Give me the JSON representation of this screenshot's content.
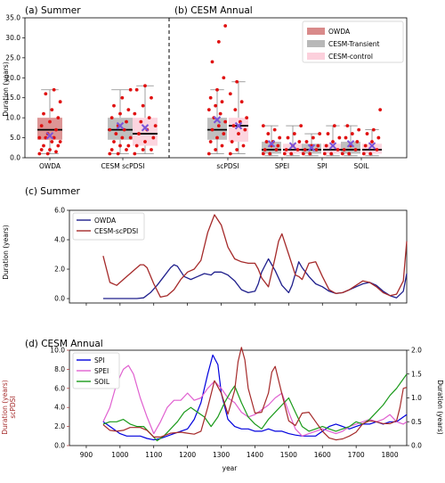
{
  "chart_data": [
    {
      "panel": "(a) Summer",
      "type": "box",
      "title": "(a) Summer",
      "ylabel": "Duration (years)",
      "ylim": [
        0,
        35
      ],
      "yticks": [
        "0.0",
        "5.0",
        "10.0",
        "15.0",
        "20.0",
        "25.0",
        "30.0",
        "35.0"
      ],
      "categories": [
        "OWDA",
        "CESM scPDSI"
      ],
      "boxes": [
        {
          "cat": "OWDA",
          "series": "OWDA",
          "q1": 4.5,
          "median": 7,
          "q3": 10,
          "whislo": 1,
          "whishi": 17,
          "mean": 5.5,
          "points": [
            1,
            1,
            1.5,
            2,
            2,
            3,
            3,
            4,
            4,
            5,
            5,
            5,
            6,
            7,
            8,
            9,
            10,
            11,
            12,
            14,
            16,
            17
          ]
        },
        {
          "cat": "CESM scPDSI",
          "series": "CESM-Transient",
          "q1": 4.5,
          "median": 7,
          "q3": 10,
          "whislo": 1,
          "whishi": 17,
          "mean": 8,
          "points": [
            1,
            1,
            2,
            2,
            3,
            3,
            4,
            5,
            5,
            6,
            7,
            7,
            8,
            9,
            10,
            11,
            12,
            13,
            15,
            17
          ]
        },
        {
          "cat": "CESM scPDSI",
          "series": "CESM-control",
          "q1": 3,
          "median": 6,
          "q3": 10,
          "whislo": 1,
          "whishi": 18,
          "mean": 7.5,
          "points": [
            1,
            2,
            2,
            3,
            4,
            5,
            6,
            7,
            8,
            9,
            10,
            11,
            13,
            15,
            17,
            18
          ]
        }
      ]
    },
    {
      "panel": "(b) CESM Annual",
      "type": "box",
      "title": "(b) CESM Annual",
      "categories": [
        "scPDSI",
        "SPEI",
        "SPI",
        "SOIL"
      ],
      "legend": [
        "OWDA",
        "CESM-Transient",
        "CESM-control"
      ],
      "legend_position": "top-right",
      "boxes": [
        {
          "cat": "scPDSI",
          "series": "CESM-Transient",
          "q1": 4.5,
          "median": 7,
          "q3": 10,
          "whislo": 1,
          "whishi": 17,
          "mean": 9.5,
          "points": [
            1,
            2,
            3,
            4,
            5,
            6,
            7,
            8,
            9,
            10,
            11,
            12,
            13,
            14,
            15,
            17,
            20,
            24,
            29,
            33
          ]
        },
        {
          "cat": "scPDSI",
          "series": "CESM-control",
          "q1": 4,
          "median": 8,
          "q3": 10,
          "whislo": 1,
          "whishi": 19,
          "mean": 8,
          "points": [
            1,
            2,
            3,
            4,
            6,
            7,
            8,
            9,
            10,
            12,
            14,
            16,
            19
          ]
        },
        {
          "cat": "SPEI",
          "series": "CESM-Transient",
          "q1": 1,
          "median": 2,
          "q3": 4,
          "whislo": 0.5,
          "whishi": 8,
          "mean": 3.5,
          "points": [
            1,
            1,
            2,
            2,
            3,
            3,
            4,
            4,
            5,
            6,
            7,
            8
          ]
        },
        {
          "cat": "SPEI",
          "series": "CESM-control",
          "q1": 1,
          "median": 2,
          "q3": 3.5,
          "whislo": 0.5,
          "whishi": 8,
          "mean": 3,
          "points": [
            1,
            1,
            2,
            2,
            3,
            4,
            5,
            6,
            8
          ]
        },
        {
          "cat": "SPI",
          "series": "CESM-Transient",
          "q1": 1,
          "median": 2,
          "q3": 3.5,
          "whislo": 0.5,
          "whishi": 6,
          "mean": 2.5,
          "points": [
            1,
            1,
            2,
            2,
            3,
            3,
            4,
            5,
            6
          ]
        },
        {
          "cat": "SPI",
          "series": "CESM-control",
          "q1": 1,
          "median": 2,
          "q3": 3.5,
          "whislo": 0.5,
          "whishi": 8,
          "mean": 3,
          "points": [
            1,
            1,
            2,
            3,
            4,
            5,
            6,
            8
          ]
        },
        {
          "cat": "SOIL",
          "series": "CESM-Transient",
          "q1": 1,
          "median": 2,
          "q3": 4,
          "whislo": 0.5,
          "whishi": 8,
          "mean": 3.5,
          "points": [
            1,
            1,
            2,
            2,
            3,
            4,
            5,
            6,
            7,
            8
          ]
        },
        {
          "cat": "SOIL",
          "series": "CESM-control",
          "q1": 1,
          "median": 2,
          "q3": 3.5,
          "whislo": 0.5,
          "whishi": 7,
          "mean": 3,
          "points": [
            1,
            1,
            2,
            3,
            4,
            5,
            6,
            7,
            12
          ]
        }
      ]
    },
    {
      "panel": "(c) Summer",
      "type": "line",
      "title": "(c) Summer",
      "ylabel": "Duration (years)",
      "xlim": [
        850,
        1850
      ],
      "ylim": [
        -0.3,
        6
      ],
      "yticks": [
        "0.0",
        "2.0",
        "4.0",
        "6.0"
      ],
      "legend_position": "top-left",
      "series": [
        {
          "name": "OWDA",
          "color": "#1f1f8c",
          "x": [
            950,
            1000,
            1050,
            1070,
            1090,
            1110,
            1130,
            1150,
            1160,
            1170,
            1190,
            1210,
            1230,
            1250,
            1270,
            1280,
            1300,
            1320,
            1340,
            1360,
            1380,
            1400,
            1410,
            1420,
            1440,
            1460,
            1480,
            1500,
            1510,
            1520,
            1530,
            1540,
            1560,
            1580,
            1600,
            1620,
            1640,
            1660,
            1680,
            1700,
            1720,
            1740,
            1760,
            1780,
            1800,
            1820,
            1840,
            1850
          ],
          "y": [
            0,
            0,
            0,
            0.05,
            0.4,
            0.9,
            1.5,
            2.1,
            2.3,
            2.2,
            1.5,
            1.3,
            1.5,
            1.7,
            1.6,
            1.8,
            1.8,
            1.6,
            1.2,
            0.6,
            0.4,
            0.5,
            1.0,
            1.8,
            2.7,
            1.9,
            0.9,
            0.4,
            0.9,
            1.7,
            2.5,
            2.1,
            1.5,
            1.0,
            0.8,
            0.5,
            0.35,
            0.4,
            0.6,
            0.8,
            1.0,
            1.1,
            0.9,
            0.5,
            0.2,
            0.05,
            0.5,
            1.7
          ]
        },
        {
          "name": "CESM-scPDSI",
          "color": "#a52a2a",
          "x": [
            950,
            970,
            990,
            1010,
            1030,
            1050,
            1060,
            1070,
            1080,
            1100,
            1120,
            1140,
            1160,
            1180,
            1200,
            1220,
            1240,
            1260,
            1280,
            1300,
            1320,
            1340,
            1360,
            1380,
            1400,
            1410,
            1420,
            1440,
            1460,
            1470,
            1480,
            1500,
            1520,
            1530,
            1540,
            1560,
            1580,
            1600,
            1620,
            1640,
            1660,
            1680,
            1700,
            1720,
            1740,
            1760,
            1780,
            1800,
            1820,
            1840,
            1850
          ],
          "y": [
            2.9,
            1.1,
            0.9,
            1.3,
            1.7,
            2.1,
            2.3,
            2.3,
            2.1,
            1.0,
            0.1,
            0.2,
            0.6,
            1.3,
            1.8,
            2.0,
            2.6,
            4.5,
            5.7,
            5.0,
            3.5,
            2.7,
            2.5,
            2.4,
            2.4,
            2.0,
            1.4,
            0.8,
            2.8,
            3.9,
            4.4,
            3.0,
            1.6,
            1.5,
            1.3,
            2.4,
            2.5,
            1.5,
            0.6,
            0.35,
            0.4,
            0.6,
            0.9,
            1.2,
            1.1,
            0.8,
            0.4,
            0.2,
            0.3,
            1.2,
            3.9
          ]
        }
      ]
    },
    {
      "panel": "(d) CESM Annual",
      "type": "line",
      "title": "(d) CESM Annual",
      "ylabel_left": "Duration (years)",
      "ylabel_left2": "scPDSI",
      "ylabel_right": "Duration (years)",
      "xlabel": "year",
      "xlim": [
        850,
        1850
      ],
      "xticks": [
        "900",
        "1000",
        "1100",
        "1200",
        "1300",
        "1400",
        "1500",
        "1600",
        "1700",
        "1800"
      ],
      "ylim_left": [
        0,
        10
      ],
      "ylim_right": [
        0,
        2
      ],
      "yticks_left": [
        "0.0",
        "2.0",
        "4.0",
        "6.0",
        "8.0",
        "10.0"
      ],
      "yticks_right": [
        "0.0",
        "0.5",
        "1.0",
        "1.5",
        "2.0"
      ],
      "legend_position": "top-left",
      "series": [
        {
          "name": "SPI",
          "color": "#0000dd",
          "axis": "right",
          "x": [
            950,
            980,
            1000,
            1020,
            1040,
            1060,
            1080,
            1100,
            1120,
            1140,
            1160,
            1180,
            1200,
            1220,
            1240,
            1260,
            1275,
            1290,
            1300,
            1320,
            1340,
            1360,
            1380,
            1400,
            1420,
            1440,
            1460,
            1480,
            1500,
            1520,
            1540,
            1560,
            1580,
            1600,
            1620,
            1640,
            1660,
            1680,
            1700,
            1720,
            1740,
            1760,
            1780,
            1800,
            1820,
            1840,
            1850
          ],
          "y": [
            0.5,
            0.35,
            0.25,
            0.2,
            0.2,
            0.2,
            0.15,
            0.12,
            0.15,
            0.2,
            0.25,
            0.3,
            0.35,
            0.55,
            0.9,
            1.5,
            1.9,
            1.7,
            1.1,
            0.55,
            0.4,
            0.35,
            0.35,
            0.3,
            0.3,
            0.35,
            0.3,
            0.3,
            0.25,
            0.22,
            0.2,
            0.2,
            0.2,
            0.3,
            0.4,
            0.45,
            0.4,
            0.35,
            0.4,
            0.45,
            0.45,
            0.5,
            0.45,
            0.5,
            0.5,
            0.6,
            0.65
          ]
        },
        {
          "name": "SPEI",
          "color": "#e060d0",
          "axis": "right",
          "x": [
            950,
            970,
            990,
            1010,
            1025,
            1040,
            1060,
            1080,
            1100,
            1120,
            1140,
            1160,
            1180,
            1200,
            1220,
            1240,
            1260,
            1280,
            1300,
            1320,
            1340,
            1360,
            1380,
            1400,
            1420,
            1440,
            1460,
            1480,
            1500,
            1520,
            1540,
            1560,
            1580,
            1600,
            1620,
            1640,
            1660,
            1680,
            1700,
            1720,
            1740,
            1760,
            1780,
            1800,
            1820,
            1840,
            1850
          ],
          "y": [
            0.5,
            0.8,
            1.3,
            1.6,
            1.68,
            1.5,
            1.0,
            0.6,
            0.25,
            0.5,
            0.8,
            0.95,
            0.95,
            1.1,
            0.95,
            1.0,
            1.2,
            1.35,
            1.2,
            1.0,
            0.9,
            0.7,
            0.6,
            0.65,
            0.75,
            0.85,
            1.0,
            1.1,
            0.7,
            0.35,
            0.2,
            0.25,
            0.3,
            0.35,
            0.3,
            0.25,
            0.3,
            0.4,
            0.45,
            0.5,
            0.55,
            0.5,
            0.55,
            0.65,
            0.5,
            0.45,
            0.5
          ]
        },
        {
          "name": "SOIL",
          "color": "#1a9a1a",
          "axis": "right",
          "x": [
            950,
            970,
            990,
            1010,
            1030,
            1050,
            1070,
            1090,
            1110,
            1130,
            1150,
            1170,
            1190,
            1210,
            1230,
            1250,
            1270,
            1290,
            1310,
            1330,
            1340,
            1360,
            1380,
            1400,
            1420,
            1440,
            1460,
            1480,
            1500,
            1520,
            1540,
            1560,
            1580,
            1600,
            1620,
            1640,
            1660,
            1680,
            1700,
            1720,
            1740,
            1760,
            1780,
            1800,
            1820,
            1840,
            1850
          ],
          "y": [
            0.45,
            0.5,
            0.5,
            0.55,
            0.45,
            0.4,
            0.4,
            0.25,
            0.1,
            0.2,
            0.35,
            0.5,
            0.7,
            0.8,
            0.7,
            0.6,
            0.4,
            0.6,
            0.9,
            1.15,
            1.25,
            0.9,
            0.6,
            0.45,
            0.35,
            0.55,
            0.7,
            0.85,
            1.0,
            0.7,
            0.4,
            0.3,
            0.35,
            0.4,
            0.35,
            0.3,
            0.35,
            0.4,
            0.5,
            0.45,
            0.55,
            0.7,
            0.85,
            1.05,
            1.2,
            1.4,
            1.5
          ]
        },
        {
          "name": "scPDSI",
          "color": "#a52a2a",
          "axis": "left",
          "x": [
            950,
            970,
            990,
            1010,
            1030,
            1060,
            1080,
            1100,
            1120,
            1150,
            1180,
            1200,
            1220,
            1240,
            1260,
            1280,
            1300,
            1320,
            1340,
            1350,
            1360,
            1370,
            1380,
            1400,
            1420,
            1440,
            1450,
            1460,
            1480,
            1500,
            1520,
            1540,
            1560,
            1580,
            1600,
            1620,
            1640,
            1660,
            1680,
            1700,
            1720,
            1740,
            1760,
            1780,
            1800,
            1820,
            1830,
            1840,
            1850
          ],
          "y": [
            2.2,
            1.6,
            1.5,
            1.6,
            1.9,
            1.9,
            1.6,
            0.9,
            0.9,
            1.3,
            1.4,
            1.3,
            1.2,
            1.5,
            4.0,
            6.8,
            5.5,
            3.3,
            5.8,
            8.8,
            10.3,
            9.0,
            6.0,
            3.4,
            3.5,
            5.5,
            7.7,
            8.3,
            5.4,
            2.6,
            2.1,
            3.4,
            3.5,
            2.5,
            1.5,
            0.8,
            0.6,
            0.7,
            1.0,
            1.4,
            2.3,
            2.6,
            2.5,
            2.3,
            2.3,
            2.6,
            4.0,
            6.0,
            6.1
          ]
        }
      ]
    }
  ]
}
